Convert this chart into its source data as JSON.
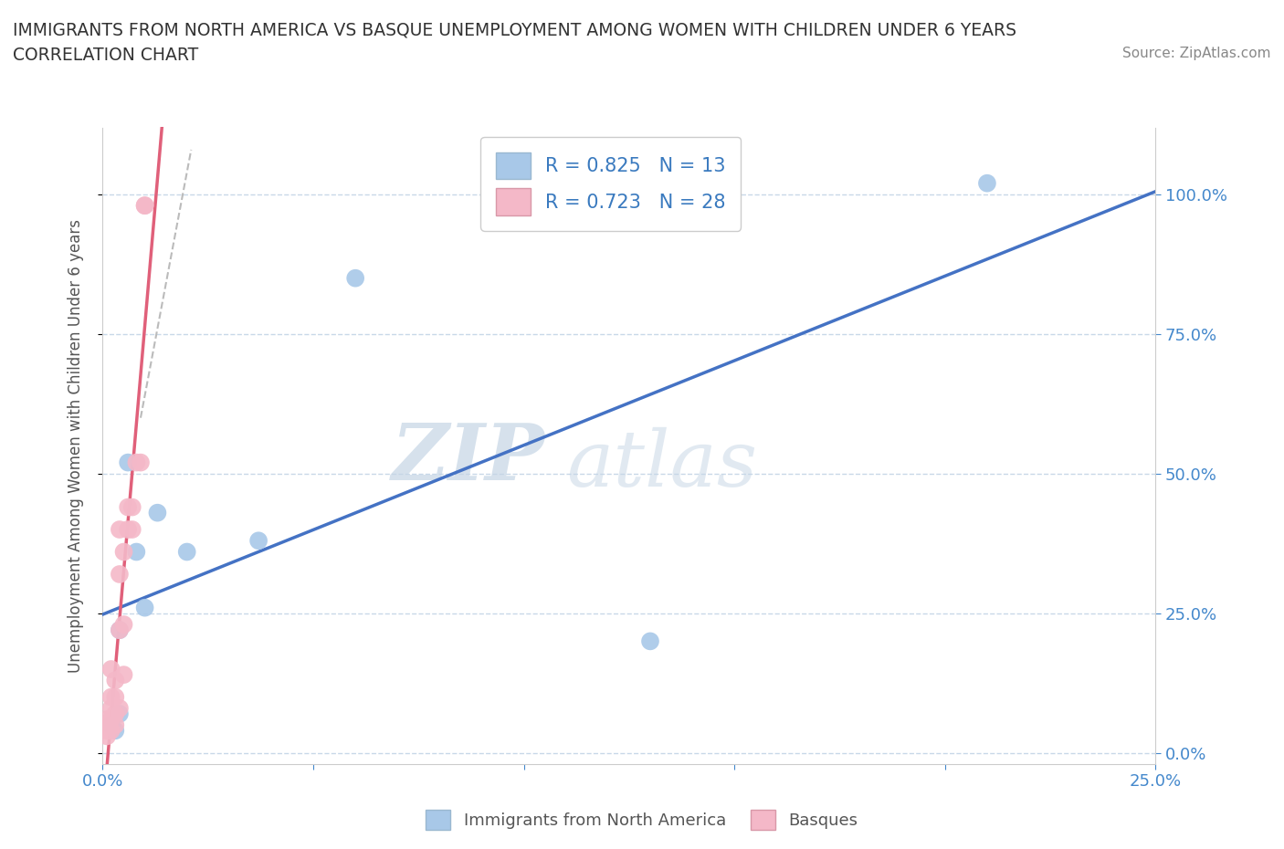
{
  "title_line1": "IMMIGRANTS FROM NORTH AMERICA VS BASQUE UNEMPLOYMENT AMONG WOMEN WITH CHILDREN UNDER 6 YEARS",
  "title_line2": "CORRELATION CHART",
  "source_text": "Source: ZipAtlas.com",
  "ylabel": "Unemployment Among Women with Children Under 6 years",
  "xlim": [
    0.0,
    0.25
  ],
  "ylim": [
    -0.02,
    1.12
  ],
  "ytick_labels_right": [
    "0.0%",
    "25.0%",
    "50.0%",
    "75.0%",
    "100.0%"
  ],
  "ytick_vals": [
    0.0,
    0.25,
    0.5,
    0.75,
    1.0
  ],
  "xtick_vals": [
    0.0,
    0.05,
    0.1,
    0.15,
    0.2,
    0.25
  ],
  "xtick_labels": [
    "0.0%",
    "",
    "",
    "",
    "",
    "25.0%"
  ],
  "blue_color": "#a8c8e8",
  "pink_color": "#f4b8c8",
  "blue_line_color": "#4472c4",
  "pink_line_color": "#e0607a",
  "blue_R": 0.825,
  "blue_N": 13,
  "pink_R": 0.723,
  "pink_N": 28,
  "legend_label_blue": "Immigrants from North America",
  "legend_label_pink": "Basques",
  "watermark_zip": "ZIP",
  "watermark_atlas": "atlas",
  "background_color": "#ffffff",
  "grid_color": "#c8d8e8",
  "blue_scatter_x": [
    0.002,
    0.003,
    0.004,
    0.004,
    0.006,
    0.008,
    0.01,
    0.013,
    0.02,
    0.037,
    0.06,
    0.13,
    0.21
  ],
  "blue_scatter_y": [
    0.05,
    0.04,
    0.22,
    0.07,
    0.52,
    0.36,
    0.26,
    0.43,
    0.36,
    0.38,
    0.85,
    0.2,
    1.02
  ],
  "pink_scatter_x": [
    0.001,
    0.001,
    0.001,
    0.001,
    0.002,
    0.002,
    0.002,
    0.002,
    0.002,
    0.003,
    0.003,
    0.003,
    0.003,
    0.004,
    0.004,
    0.004,
    0.004,
    0.005,
    0.005,
    0.005,
    0.006,
    0.006,
    0.007,
    0.007,
    0.008,
    0.009,
    0.01,
    0.01
  ],
  "pink_scatter_y": [
    0.03,
    0.04,
    0.05,
    0.06,
    0.04,
    0.06,
    0.08,
    0.1,
    0.15,
    0.05,
    0.07,
    0.1,
    0.13,
    0.08,
    0.22,
    0.32,
    0.4,
    0.14,
    0.23,
    0.36,
    0.4,
    0.44,
    0.4,
    0.44,
    0.52,
    0.52,
    0.98,
    0.98
  ],
  "dash_line_x": [
    0.009,
    0.021
  ],
  "dash_line_y": [
    0.6,
    1.08
  ]
}
